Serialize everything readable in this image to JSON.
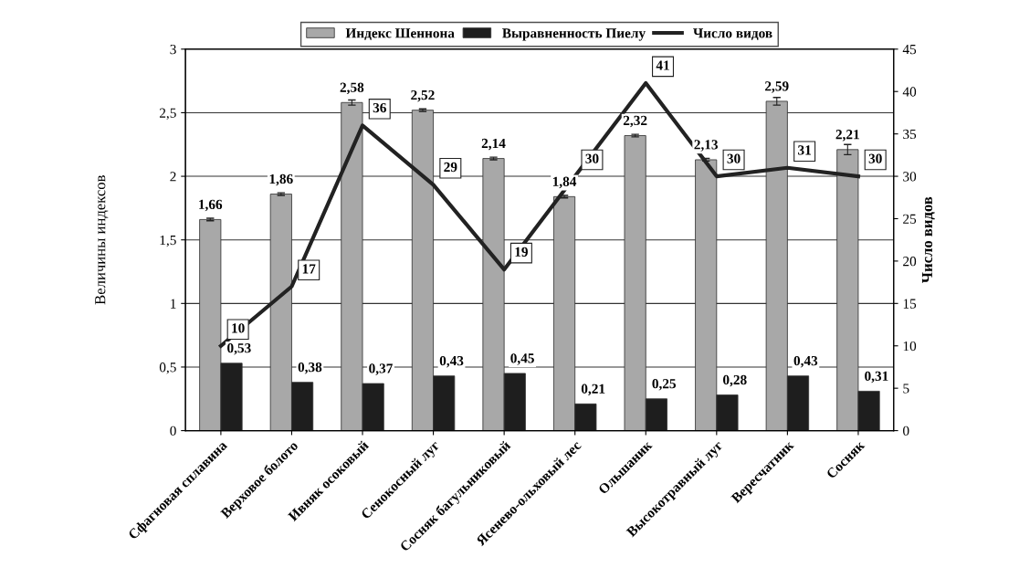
{
  "chart_data": {
    "type": "bar",
    "ylabel": "Величины индексов",
    "y2label": "Число видов",
    "categories": [
      "Сфагновая сплавина",
      "Верховое болото",
      "Ивняк осоковый",
      "Сенокосный луг",
      "Сосняк багульниковый",
      "Ясенево-ольховый лес",
      "Ольшаник",
      "Высокотравный луг",
      "Вересчатник",
      "Сосняк"
    ],
    "series": [
      {
        "name": "Индекс Шеннона",
        "color": "#a8a8a8",
        "values": [
          1.66,
          1.86,
          2.58,
          2.52,
          2.14,
          1.84,
          2.32,
          2.13,
          2.59,
          2.21
        ],
        "value_labels": [
          "1,66",
          "1,86",
          "2,58",
          "2,52",
          "2,14",
          "1,84",
          "2,32",
          "2,13",
          "2,59",
          "2,21"
        ],
        "errors": [
          0.01,
          0.01,
          0.02,
          0.01,
          0.01,
          0.01,
          0.01,
          0.01,
          0.03,
          0.04
        ]
      },
      {
        "name": "Выравненность Пиелу",
        "color": "#1e1e1e",
        "values": [
          0.53,
          0.38,
          0.37,
          0.43,
          0.45,
          0.21,
          0.25,
          0.28,
          0.43,
          0.31
        ],
        "value_labels": [
          "0,53",
          "0,38",
          "0,37",
          "0,43",
          "0,45",
          "0,21",
          "0,25",
          "0,28",
          "0,43",
          "0,31"
        ]
      },
      {
        "name": "Число видов",
        "type": "line",
        "axis": "y2",
        "color": "#222222",
        "values": [
          10,
          17,
          36,
          29,
          19,
          30,
          41,
          30,
          31,
          30
        ],
        "value_labels": [
          "10",
          "17",
          "36",
          "29",
          "19",
          "30",
          "41",
          "30",
          "31",
          "30"
        ]
      }
    ],
    "ylim": [
      0,
      3
    ],
    "yticks": [
      {
        "value": 0,
        "label": "0"
      },
      {
        "value": 0.5,
        "label": "0,5"
      },
      {
        "value": 1,
        "label": "1"
      },
      {
        "value": 1.5,
        "label": "1,5"
      },
      {
        "value": 2,
        "label": "2"
      },
      {
        "value": 2.5,
        "label": "2,5"
      },
      {
        "value": 3,
        "label": "3"
      }
    ],
    "y2lim": [
      0,
      45
    ],
    "y2ticks": [
      0,
      5,
      10,
      15,
      20,
      25,
      30,
      35,
      40,
      45
    ],
    "grid": "y",
    "legend": "top",
    "marker": "none",
    "line_style": "solid"
  }
}
